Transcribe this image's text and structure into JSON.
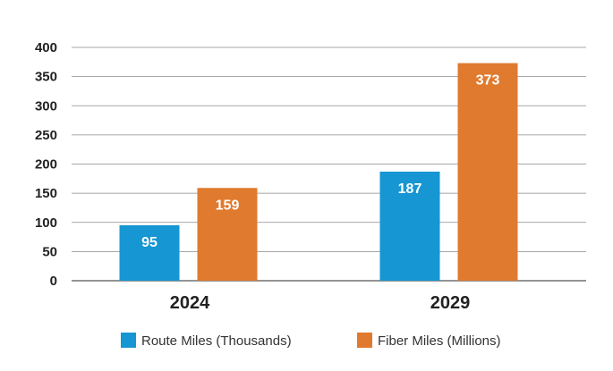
{
  "chart_data": {
    "type": "bar",
    "categories": [
      "2024",
      "2029"
    ],
    "series": [
      {
        "name": "Route Miles (Thousands)",
        "values": [
          95,
          187
        ],
        "color": "#1696d2"
      },
      {
        "name": "Fiber Miles (Millions)",
        "values": [
          159,
          373
        ],
        "color": "#e07a2e"
      }
    ],
    "y_ticks": [
      0,
      50,
      100,
      150,
      200,
      250,
      300,
      350,
      400
    ],
    "ylim": [
      0,
      400
    ],
    "grid": true,
    "legend_position": "bottom",
    "data_labels": true
  }
}
